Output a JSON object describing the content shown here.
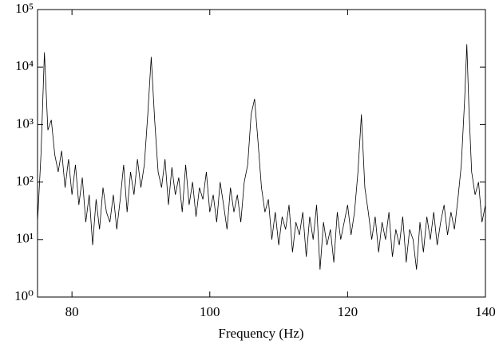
{
  "chart_data": {
    "type": "line",
    "x_label": "Frequency (Hz)",
    "yscale": "log",
    "color": "#000000",
    "xlim": [
      75,
      140
    ],
    "xticks": [
      80,
      100,
      120,
      140
    ],
    "ylim": [
      1,
      100000
    ],
    "yticks": [
      {
        "value": 1,
        "label": "10⁰"
      },
      {
        "value": 10,
        "label": "10¹"
      },
      {
        "value": 100,
        "label": "10²"
      },
      {
        "value": 1000,
        "label": "10³"
      },
      {
        "value": 10000,
        "label": "10⁴"
      },
      {
        "value": 100000,
        "label": "10⁵"
      }
    ],
    "x": [
      75,
      75.5,
      76,
      76.5,
      77,
      77.5,
      78,
      78.5,
      79,
      79.5,
      80,
      80.5,
      81,
      81.5,
      82,
      82.5,
      83,
      83.5,
      84,
      84.5,
      85,
      85.5,
      86,
      86.5,
      87,
      87.5,
      88,
      88.5,
      89,
      89.5,
      90,
      90.5,
      91,
      91.5,
      92,
      92.5,
      93,
      93.5,
      94,
      94.5,
      95,
      95.5,
      96,
      96.5,
      97,
      97.5,
      98,
      98.5,
      99,
      99.5,
      100,
      100.5,
      101,
      101.5,
      102,
      102.5,
      103,
      103.5,
      104,
      104.5,
      105,
      105.5,
      106,
      106.5,
      107,
      107.5,
      108,
      108.5,
      109,
      109.5,
      110,
      110.5,
      111,
      111.5,
      112,
      112.5,
      113,
      113.5,
      114,
      114.5,
      115,
      115.5,
      116,
      116.5,
      117,
      117.5,
      118,
      118.5,
      119,
      119.5,
      120,
      120.5,
      121,
      121.5,
      122,
      122.5,
      123,
      123.5,
      124,
      124.5,
      125,
      125.5,
      126,
      126.5,
      127,
      127.5,
      128,
      128.5,
      129,
      129.5,
      130,
      130.5,
      131,
      131.5,
      132,
      132.5,
      133,
      133.5,
      134,
      134.5,
      135,
      135.5,
      136,
      136.5,
      137,
      137.3,
      137.6,
      138,
      138.5,
      139,
      139.5,
      140
    ],
    "values": [
      20,
      300,
      18000,
      800,
      1200,
      300,
      150,
      350,
      80,
      250,
      60,
      200,
      40,
      120,
      20,
      60,
      8,
      50,
      15,
      80,
      30,
      20,
      60,
      15,
      50,
      200,
      30,
      150,
      60,
      250,
      80,
      200,
      1500,
      15000,
      1200,
      150,
      80,
      250,
      40,
      180,
      60,
      120,
      30,
      200,
      40,
      100,
      25,
      80,
      50,
      150,
      30,
      60,
      20,
      100,
      40,
      15,
      80,
      30,
      60,
      20,
      100,
      200,
      1500,
      2800,
      500,
      80,
      30,
      50,
      10,
      30,
      8,
      25,
      15,
      40,
      6,
      20,
      12,
      30,
      5,
      25,
      10,
      40,
      3,
      20,
      8,
      15,
      4,
      30,
      10,
      20,
      40,
      12,
      30,
      150,
      1500,
      80,
      30,
      10,
      25,
      6,
      20,
      10,
      30,
      5,
      15,
      8,
      25,
      4,
      15,
      10,
      3,
      20,
      6,
      25,
      10,
      30,
      8,
      20,
      40,
      12,
      30,
      15,
      50,
      200,
      3000,
      25000,
      2000,
      150,
      60,
      100,
      20,
      40
    ]
  }
}
